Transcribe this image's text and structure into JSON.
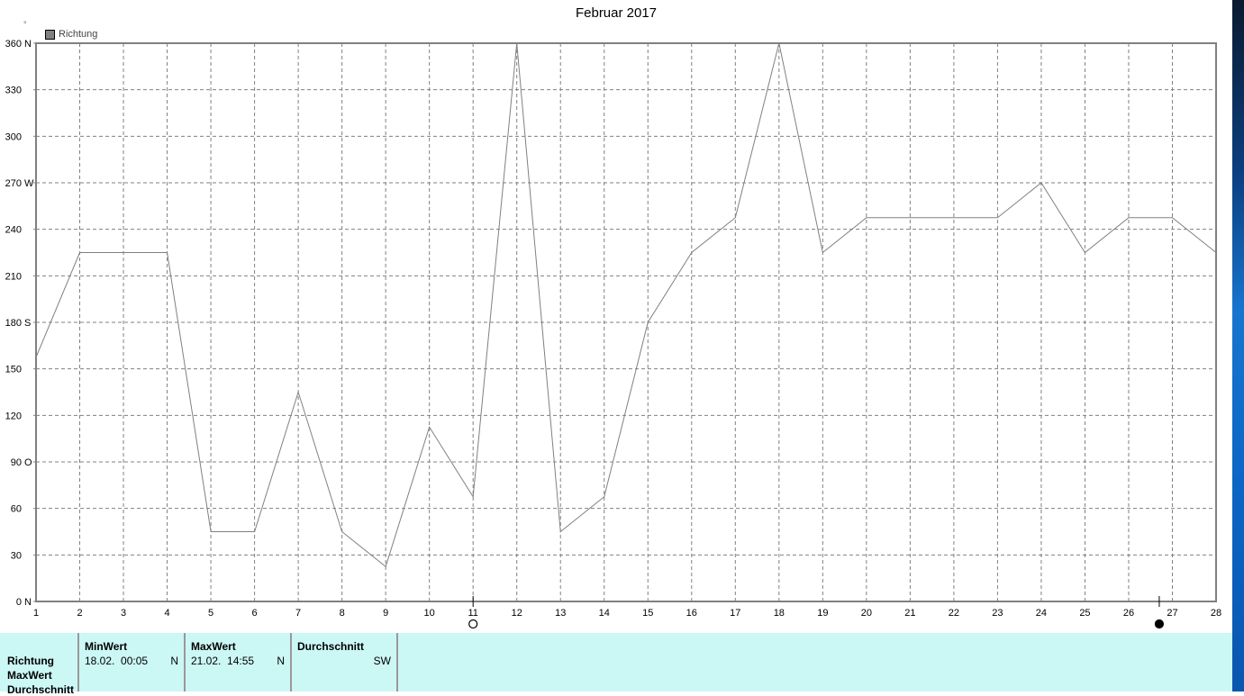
{
  "chart_data": {
    "type": "line",
    "title": "Februar 2017",
    "y_unit": "°",
    "legend": [
      "Richtung"
    ],
    "legend_placement": "top-left",
    "grid": true,
    "x": [
      1,
      2,
      3,
      4,
      5,
      6,
      7,
      8,
      9,
      10,
      11,
      12,
      13,
      14,
      15,
      16,
      17,
      18,
      19,
      20,
      21,
      22,
      23,
      24,
      25,
      26,
      27,
      28
    ],
    "series": [
      {
        "name": "Richtung",
        "values": [
          157.5,
          225,
          225,
          225,
          45,
          45,
          135,
          45,
          22.5,
          112.5,
          67.5,
          360,
          45,
          67.5,
          180,
          225,
          247.5,
          360,
          225,
          247.5,
          247.5,
          247.5,
          247.5,
          270,
          225,
          247.5,
          247.5,
          225
        ]
      }
    ],
    "xlim": [
      1,
      28
    ],
    "ylim": [
      0,
      360
    ],
    "y_ticks": [
      {
        "v": 0,
        "label": "0",
        "dir": "N"
      },
      {
        "v": 30,
        "label": "30",
        "dir": ""
      },
      {
        "v": 60,
        "label": "60",
        "dir": ""
      },
      {
        "v": 90,
        "label": "90",
        "dir": "O"
      },
      {
        "v": 120,
        "label": "120",
        "dir": ""
      },
      {
        "v": 150,
        "label": "150",
        "dir": ""
      },
      {
        "v": 180,
        "label": "180",
        "dir": "S"
      },
      {
        "v": 210,
        "label": "210",
        "dir": ""
      },
      {
        "v": 240,
        "label": "240",
        "dir": ""
      },
      {
        "v": 270,
        "label": "270",
        "dir": "W"
      },
      {
        "v": 300,
        "label": "300",
        "dir": ""
      },
      {
        "v": 330,
        "label": "330",
        "dir": ""
      },
      {
        "v": 360,
        "label": "360",
        "dir": "N"
      }
    ],
    "moon_phases": [
      {
        "day": 11,
        "phase": "full-moon-icon"
      },
      {
        "day": 26.7,
        "phase": "new-moon-icon"
      }
    ],
    "line_color": "#808080"
  },
  "panel": {
    "row_labels": [
      "Richtung",
      "MaxWert",
      "Durchschnitt"
    ],
    "min": {
      "header": "MinWert",
      "date": "18.02.  00:05",
      "dir": "N"
    },
    "max": {
      "header": "MaxWert",
      "date": "21.02.  14:55",
      "dir": "N"
    },
    "avg": {
      "header": "Durchschnitt",
      "dir": "SW"
    },
    "background": "#cbf7f5"
  }
}
